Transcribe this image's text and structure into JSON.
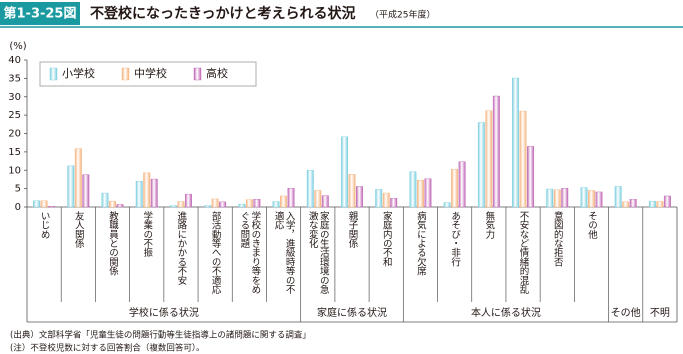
{
  "header": {
    "figure_id": "第1-3-25図",
    "title": "不登校になったきっかけと考えられる状況",
    "subtitle": "（平成25年度）"
  },
  "chart_data": {
    "type": "bar",
    "y_label": "(%)",
    "category_groups": [
      {
        "label": "学校に係る状況",
        "categories": [
          "いじめ",
          "友人関係",
          "教職員との関係",
          "学業の不振",
          "進路にかかる不安",
          "部活動等への不適応",
          "学校のきまり等をめぐる問題",
          "入学，進級時等の不適応"
        ]
      },
      {
        "label": "家庭に係る状況",
        "categories": [
          "家庭の生活環境の急激な変化",
          "親子関係",
          "家庭内の不和"
        ]
      },
      {
        "label": "本人に係る状況",
        "categories": [
          "病気による欠席",
          "あそび・非行",
          "無気力",
          "不安など情緒的混乱",
          "意図的な拒否",
          "その他"
        ]
      },
      {
        "label": "その他",
        "categories": [
          null
        ]
      },
      {
        "label": "不明",
        "categories": [
          null
        ]
      }
    ],
    "series": [
      {
        "name": "小学校",
        "color": "#7ccfe0",
        "values": [
          1.7,
          11.2,
          3.8,
          7.0,
          0.4,
          0.4,
          0.8,
          1.5,
          10.0,
          19.1,
          4.8,
          9.6,
          1.2,
          23.0,
          35.1,
          4.9,
          5.3,
          5.6,
          1.6
        ]
      },
      {
        "name": "中学校",
        "color": "#f5b27c",
        "values": [
          1.7,
          15.9,
          1.6,
          9.3,
          1.5,
          2.2,
          2.0,
          3.0,
          4.5,
          8.9,
          3.8,
          7.3,
          10.3,
          26.2,
          26.1,
          4.7,
          4.5,
          1.4,
          1.5
        ]
      },
      {
        "name": "高校",
        "color": "#c065b5",
        "values": [
          0.2,
          8.8,
          0.7,
          7.6,
          3.5,
          1.4,
          2.1,
          5.1,
          3.1,
          5.6,
          2.4,
          7.7,
          12.3,
          30.2,
          16.5,
          5.1,
          4.1,
          2.1,
          3.0
        ]
      }
    ],
    "ylim": [
      0,
      40
    ],
    "yticks": [
      0,
      5,
      10,
      15,
      20,
      25,
      30,
      35,
      40
    ],
    "grid": false
  },
  "notes": [
    "(出典）文部科学省「児童生徒の問題行動等生徒指導上の諸問題に関する調査」",
    "(注）不登校児数に対する回答割合（複数回答可）。"
  ]
}
